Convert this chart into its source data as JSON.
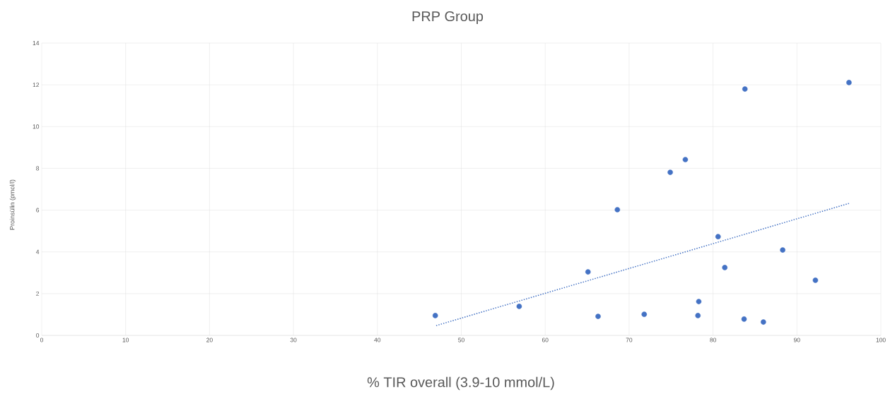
{
  "chart_data": {
    "type": "scatter",
    "title": "PRP Group",
    "xlabel": "% TIR overall (3.9-10 mmol/L)",
    "ylabel": "Proinsülin (pmol/l)",
    "xlim": [
      0,
      100
    ],
    "xticks": [
      0,
      10,
      20,
      30,
      40,
      50,
      60,
      70,
      80,
      90,
      100
    ],
    "ylim": [
      0,
      14
    ],
    "yticks": [
      0,
      2,
      4,
      6,
      8,
      10,
      12,
      14
    ],
    "grid": true,
    "series": [
      {
        "color": "#4472c4",
        "marker": "circle",
        "x": [
          46.9,
          56.9,
          65.1,
          66.3,
          68.6,
          71.8,
          74.9,
          76.7,
          78.3,
          78.2,
          80.6,
          81.4,
          83.8,
          83.7,
          86.0,
          88.3,
          92.2,
          96.2
        ],
        "values": [
          0.95,
          1.39,
          3.04,
          0.91,
          6.02,
          1.01,
          7.81,
          8.42,
          1.62,
          0.95,
          4.73,
          3.25,
          11.8,
          0.78,
          0.64,
          4.09,
          2.64,
          12.11
        ]
      },
      {
        "type": "line",
        "color": "#4472c4",
        "line_style": "dotted",
        "marker": "none",
        "x": [
          47.0,
          96.2
        ],
        "values": [
          0.47,
          6.32
        ]
      }
    ]
  }
}
